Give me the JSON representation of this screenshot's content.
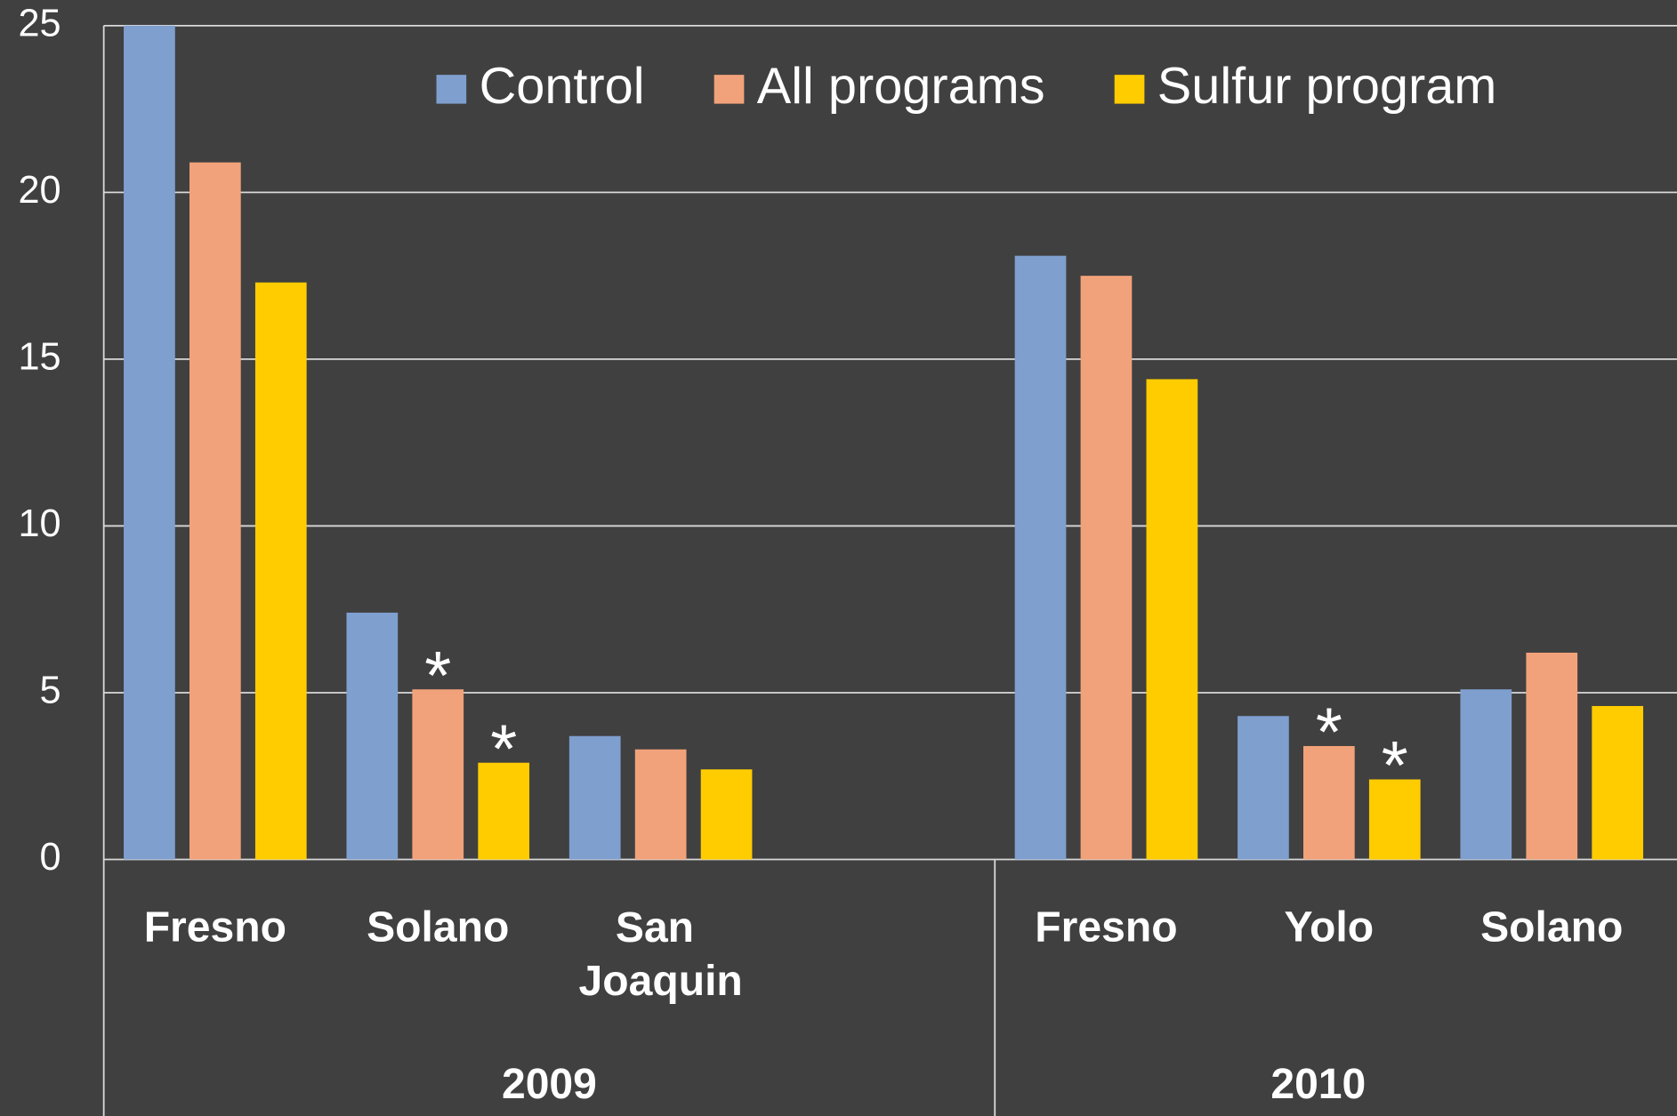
{
  "chart_data": {
    "type": "bar",
    "categories": [
      "Fresno",
      "Solano",
      "San Joaquin",
      null,
      "Fresno",
      "Yolo",
      "Solano"
    ],
    "groups": [
      {
        "name": "2009",
        "size": 4
      },
      {
        "name": "2010",
        "size": 3
      }
    ],
    "series": [
      {
        "name": "Control",
        "color": "#7f9fcf",
        "values": [
          25,
          7.4,
          3.7,
          null,
          18.1,
          4.3,
          5.1
        ],
        "marks": [
          null,
          null,
          null,
          null,
          null,
          null,
          null
        ]
      },
      {
        "name": "All programs",
        "color": "#f2a27a",
        "values": [
          20.9,
          5.1,
          3.3,
          null,
          17.5,
          3.4,
          6.2
        ],
        "marks": [
          null,
          "*",
          null,
          null,
          null,
          "*",
          null
        ]
      },
      {
        "name": "Sulfur program",
        "color": "#ffcc00",
        "values": [
          17.3,
          2.9,
          2.7,
          null,
          14.4,
          2.4,
          4.6
        ],
        "marks": [
          null,
          "*",
          null,
          null,
          null,
          "*",
          null
        ]
      }
    ],
    "ylim": [
      0,
      25
    ],
    "yticks": [
      0,
      5,
      10,
      15,
      20,
      25
    ],
    "grid": true,
    "legend": "top-right"
  }
}
